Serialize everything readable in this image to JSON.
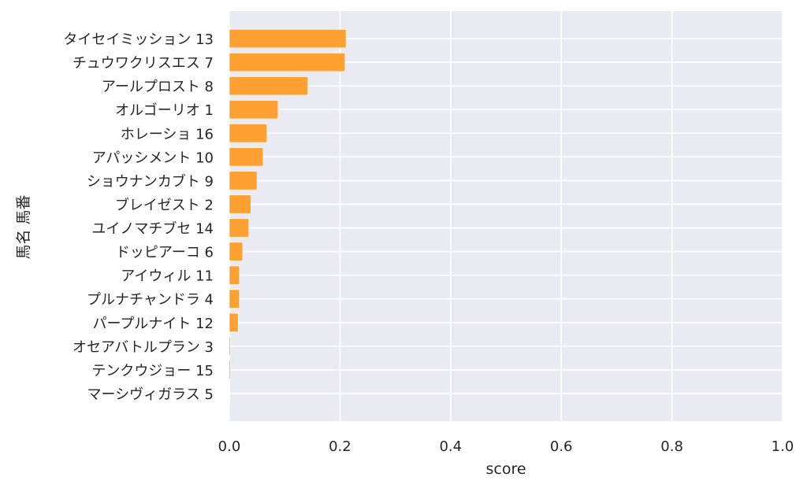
{
  "chart_data": {
    "type": "bar",
    "orientation": "horizontal",
    "title": "",
    "xlabel": "score",
    "ylabel": "馬名 馬番",
    "xlim": [
      0.0,
      1.0
    ],
    "xticks": [
      "0.0",
      "0.2",
      "0.4",
      "0.6",
      "0.8",
      "1.0"
    ],
    "grid": true,
    "style": "seaborn-darkgrid",
    "colors": {
      "bar": "#ffa033",
      "background": "#eaeaf2",
      "grid": "#ffffff"
    },
    "categories": [
      "タイセイミッション 13",
      "チュウワクリスエス 7",
      "アールプロスト 8",
      "オルゴーリオ 1",
      "ホレーショ 16",
      "アパッシメント 10",
      "ショウナンカブト 9",
      "ブレイゼスト 2",
      "ユイノマチブセ 14",
      "ドッピアーコ 6",
      "アイウィル 11",
      "プルナチャンドラ 4",
      "パープルナイト 12",
      "オセアバトルプラン 3",
      "テンクウジョー 15",
      "マーシヴィガラス 5"
    ],
    "values": [
      0.211,
      0.209,
      0.142,
      0.088,
      0.068,
      0.061,
      0.05,
      0.039,
      0.035,
      0.024,
      0.018,
      0.018,
      0.016,
      0.002,
      0.002,
      0.0005
    ]
  }
}
